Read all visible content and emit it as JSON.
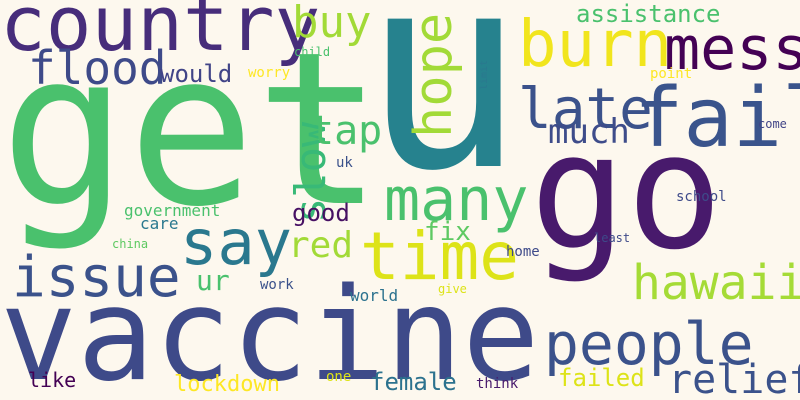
{
  "words": [
    {
      "text": "u",
      "color": "#26828e"
    },
    {
      "text": "get",
      "color": "#4ac16d"
    },
    {
      "text": "go",
      "color": "#481a6c"
    },
    {
      "text": "vaccine",
      "color": "#3e4a89"
    },
    {
      "text": "country",
      "color": "#472d7b"
    },
    {
      "text": "burn",
      "color": "#f1e51d"
    },
    {
      "text": "mess",
      "color": "#440154"
    },
    {
      "text": "fail",
      "color": "#3a548c"
    },
    {
      "text": "hope",
      "color": "#a2da37"
    },
    {
      "text": "buy",
      "color": "#a2da37"
    },
    {
      "text": "flood",
      "color": "#3e4a89"
    },
    {
      "text": "late",
      "color": "#3b528b"
    },
    {
      "text": "many",
      "color": "#4ac16d"
    },
    {
      "text": "say",
      "color": "#2a788e"
    },
    {
      "text": "time",
      "color": "#dde318"
    },
    {
      "text": "issue",
      "color": "#3b528b"
    },
    {
      "text": "people",
      "color": "#3b528b"
    },
    {
      "text": "hawaii",
      "color": "#a5db36"
    },
    {
      "text": "race",
      "color": "#482878"
    },
    {
      "text": "slow",
      "color": "#38b977"
    },
    {
      "text": "tap",
      "color": "#4ac16d"
    },
    {
      "text": "much",
      "color": "#3e4c8a"
    },
    {
      "text": "relief",
      "color": "#3b528b"
    },
    {
      "text": "red",
      "color": "#a2da37"
    },
    {
      "text": "would",
      "color": "#414487"
    },
    {
      "text": "assistance",
      "color": "#4ac16d"
    },
    {
      "text": "school",
      "color": "#3e4a89"
    },
    {
      "text": "government",
      "color": "#4ac16d"
    },
    {
      "text": "care",
      "color": "#2a788e"
    },
    {
      "text": "good",
      "color": "#471063"
    },
    {
      "text": "fix",
      "color": "#5ec962"
    },
    {
      "text": "ur",
      "color": "#4ac16d"
    },
    {
      "text": "lockdown",
      "color": "#fde725"
    },
    {
      "text": "female",
      "color": "#2c728e"
    },
    {
      "text": "failed",
      "color": "#dde318"
    },
    {
      "text": "like",
      "color": "#440154"
    },
    {
      "text": "work",
      "color": "#3b528b"
    },
    {
      "text": "world",
      "color": "#2c728e"
    },
    {
      "text": "home",
      "color": "#3e4a89"
    },
    {
      "text": "think",
      "color": "#481a6c"
    },
    {
      "text": "one",
      "color": "#dde318"
    },
    {
      "text": "give",
      "color": "#dde318"
    },
    {
      "text": "uk",
      "color": "#3b528b"
    },
    {
      "text": "worry",
      "color": "#fde725"
    },
    {
      "text": "child",
      "color": "#4ac16d"
    },
    {
      "text": "limit",
      "color": "#2a788e"
    },
    {
      "text": "point",
      "color": "#fde725"
    },
    {
      "text": "come",
      "color": "#414487"
    },
    {
      "text": "least",
      "color": "#3e4a89"
    },
    {
      "text": "china",
      "color": "#5ec962"
    }
  ]
}
